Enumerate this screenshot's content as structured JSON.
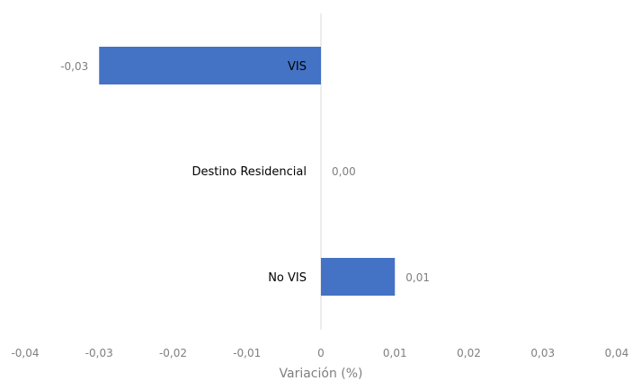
{
  "chart_data": {
    "type": "bar",
    "orientation": "horizontal",
    "categories": [
      "VIS",
      "Destino Residencial",
      "No VIS"
    ],
    "values": [
      -0.03,
      0.0,
      0.01
    ],
    "data_labels": [
      "-0,03",
      "0,00",
      "0,01"
    ],
    "xlabel": "Variación (%)",
    "ylabel": "",
    "title": "",
    "xlim": [
      -0.04,
      0.04
    ],
    "x_ticks": [
      -0.04,
      -0.03,
      -0.02,
      -0.01,
      0,
      0.01,
      0.02,
      0.03,
      0.04
    ],
    "x_tick_labels": [
      "-0,04",
      "-0,03",
      "-0,02",
      "-0,01",
      "0",
      "0,01",
      "0,02",
      "0,03",
      "0,04"
    ],
    "grid": false,
    "legend": "none",
    "colors": {
      "bar": "#4472C4",
      "axis": "#d9d9d9"
    }
  }
}
